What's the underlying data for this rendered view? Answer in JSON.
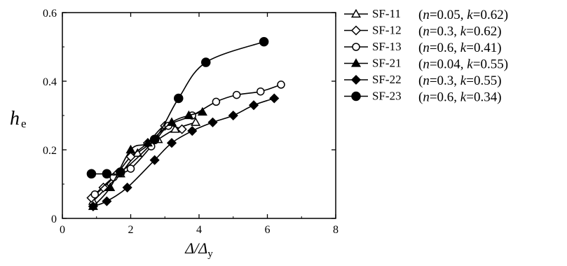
{
  "chart_data": {
    "type": "line",
    "title": "",
    "xlabel": {
      "main": "Δ/Δ",
      "sub": "y"
    },
    "ylabel": {
      "main": "h",
      "sub": "e"
    },
    "xlim": [
      0,
      8
    ],
    "ylim": [
      0,
      0.6
    ],
    "xticks": [
      "0",
      "2",
      "4",
      "6",
      "8"
    ],
    "yticks": [
      "0",
      "0.2",
      "0.4",
      "0.6"
    ],
    "grid": false,
    "legend_position": "right",
    "series": [
      {
        "name": "SF-11",
        "params": {
          "n_label": "n",
          "n": "0.05",
          "k_label": "k",
          "k": "0.62"
        },
        "marker": "triangle-open",
        "points": [
          [
            0.9,
            0.05
          ],
          [
            1.3,
            0.09
          ],
          [
            1.7,
            0.13
          ],
          [
            2.2,
            0.19
          ],
          [
            2.8,
            0.23
          ],
          [
            3.3,
            0.26
          ],
          [
            3.9,
            0.28
          ]
        ]
      },
      {
        "name": "SF-12",
        "params": {
          "n_label": "n",
          "n": "0.3",
          "k_label": "k",
          "k": "0.62"
        },
        "marker": "diamond-open",
        "points": [
          [
            0.85,
            0.06
          ],
          [
            1.2,
            0.09
          ],
          [
            1.6,
            0.13
          ],
          [
            2.0,
            0.18
          ],
          [
            2.5,
            0.22
          ],
          [
            3.0,
            0.27
          ],
          [
            3.5,
            0.26
          ]
        ]
      },
      {
        "name": "SF-13",
        "params": {
          "n_label": "n",
          "n": "0.6",
          "k_label": "k",
          "k": "0.41"
        },
        "marker": "circle-open",
        "points": [
          [
            0.95,
            0.07
          ],
          [
            1.5,
            0.12
          ],
          [
            2.0,
            0.145
          ],
          [
            2.6,
            0.21
          ],
          [
            3.1,
            0.27
          ],
          [
            3.8,
            0.3
          ],
          [
            4.5,
            0.34
          ],
          [
            5.1,
            0.36
          ],
          [
            5.8,
            0.37
          ],
          [
            6.4,
            0.39
          ]
        ]
      },
      {
        "name": "SF-21",
        "params": {
          "n_label": "n",
          "n": "0.04",
          "k_label": "k",
          "k": "0.55"
        },
        "marker": "triangle-filled",
        "points": [
          [
            0.9,
            0.035
          ],
          [
            1.4,
            0.09
          ],
          [
            2.0,
            0.2
          ],
          [
            2.5,
            0.22
          ],
          [
            3.2,
            0.28
          ],
          [
            3.7,
            0.3
          ],
          [
            4.1,
            0.31
          ]
        ]
      },
      {
        "name": "SF-22",
        "params": {
          "n_label": "n",
          "n": "0.3",
          "k_label": "k",
          "k": "0.55"
        },
        "marker": "diamond-filled",
        "points": [
          [
            0.9,
            0.035
          ],
          [
            1.3,
            0.05
          ],
          [
            1.9,
            0.09
          ],
          [
            2.7,
            0.17
          ],
          [
            3.2,
            0.22
          ],
          [
            3.8,
            0.255
          ],
          [
            4.4,
            0.28
          ],
          [
            5.0,
            0.3
          ],
          [
            5.6,
            0.33
          ],
          [
            6.2,
            0.35
          ]
        ]
      },
      {
        "name": "SF-23",
        "params": {
          "n_label": "n",
          "n": "0.6",
          "k_label": "k",
          "k": "0.34"
        },
        "marker": "circle-filled",
        "points": [
          [
            0.85,
            0.13
          ],
          [
            1.3,
            0.13
          ],
          [
            1.7,
            0.135
          ],
          [
            2.7,
            0.23
          ],
          [
            3.4,
            0.35
          ],
          [
            4.2,
            0.455
          ],
          [
            5.9,
            0.515
          ]
        ]
      }
    ]
  }
}
